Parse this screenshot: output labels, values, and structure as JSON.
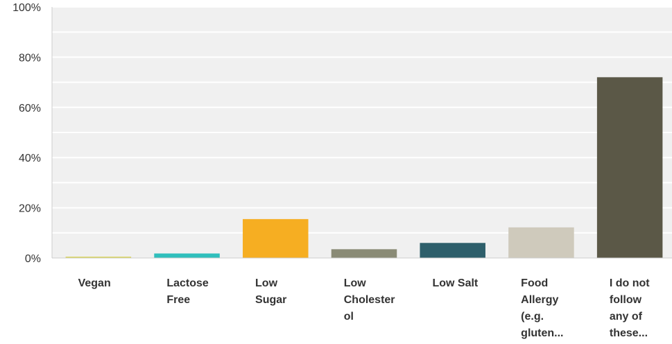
{
  "chart_data": {
    "type": "bar",
    "title": "",
    "xlabel": "",
    "ylabel": "",
    "ylim": [
      0,
      100
    ],
    "y_unit": "%",
    "y_ticks": [
      "0%",
      "20%",
      "40%",
      "60%",
      "80%",
      "100%"
    ],
    "grid": true,
    "categories": [
      [
        "Vegan"
      ],
      [
        "Lactose",
        "Free"
      ],
      [
        "Low",
        "Sugar"
      ],
      [
        "Low",
        "Cholester",
        "ol"
      ],
      [
        "Low Salt"
      ],
      [
        "Food",
        "Allergy",
        "(e.g.",
        "gluten..."
      ],
      [
        "I do not",
        "follow",
        "any of",
        "these..."
      ]
    ],
    "values": [
      0.5,
      1.8,
      15.5,
      3.5,
      6.0,
      12.2,
      72.0
    ],
    "colors": [
      "#d9d24e",
      "#2fbfbc",
      "#f6ae22",
      "#8a8b76",
      "#2e5f6b",
      "#cfcabc",
      "#5b5847"
    ]
  },
  "colors": {
    "plot_background": "#f0f0f0",
    "gridline": "#ffffff",
    "axis": "#cccccc"
  }
}
